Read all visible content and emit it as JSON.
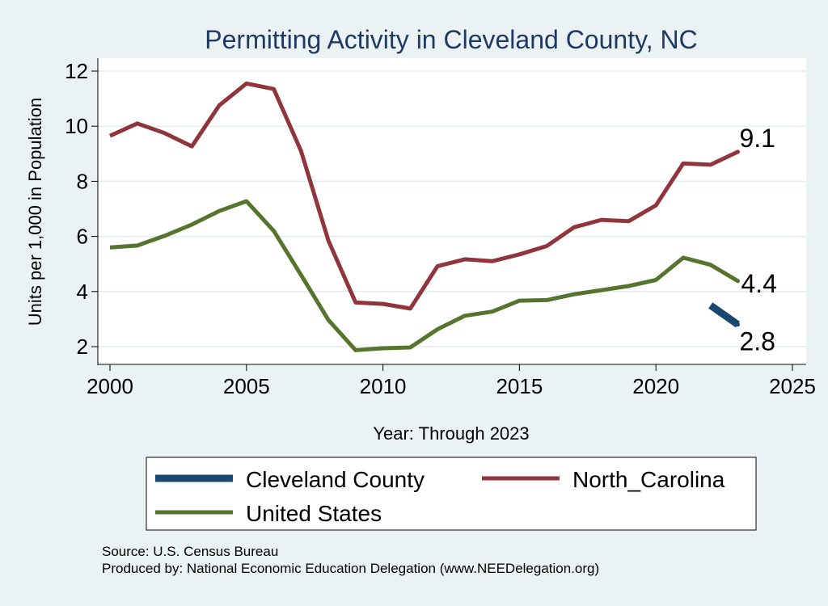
{
  "colors": {
    "background": "#EAF2F3",
    "plot_background": "#FFFFFF",
    "title": "#1F3864",
    "cleveland": "#1A476F",
    "north_carolina": "#90353B",
    "united_states": "#55752F"
  },
  "chart_data": {
    "type": "line",
    "title": "Permitting Activity in Cleveland County, NC",
    "xlabel": "Year: Through 2023",
    "ylabel": "Units per 1,000 in Population",
    "xlim": [
      2000,
      2025
    ],
    "ylim": [
      1.5,
      12.5
    ],
    "x_ticks": [
      "2000",
      "2005",
      "2010",
      "2015",
      "2020",
      "2025"
    ],
    "y_ticks": [
      "2",
      "4",
      "6",
      "8",
      "10",
      "12"
    ],
    "grid": true,
    "legend_position": "bottom",
    "series": [
      {
        "name": "Cleveland County",
        "color": "#1A476F",
        "x": [
          2022,
          2023
        ],
        "values": [
          3.5,
          2.8
        ],
        "end_label": "2.8"
      },
      {
        "name": "North_Carolina",
        "color": "#90353B",
        "x": [
          2000,
          2001,
          2002,
          2003,
          2004,
          2005,
          2006,
          2007,
          2008,
          2009,
          2010,
          2011,
          2012,
          2013,
          2014,
          2015,
          2016,
          2017,
          2018,
          2019,
          2020,
          2021,
          2022,
          2023
        ],
        "values": [
          9.65,
          10.1,
          9.75,
          9.27,
          10.75,
          11.55,
          11.35,
          9.1,
          5.85,
          3.6,
          3.55,
          3.38,
          4.92,
          5.17,
          5.1,
          5.35,
          5.65,
          6.33,
          6.6,
          6.55,
          7.13,
          8.65,
          8.6,
          9.07
        ],
        "end_label": "9.1"
      },
      {
        "name": "United States",
        "color": "#55752F",
        "x": [
          2000,
          2001,
          2002,
          2003,
          2004,
          2005,
          2006,
          2007,
          2008,
          2009,
          2010,
          2011,
          2012,
          2013,
          2014,
          2015,
          2016,
          2017,
          2018,
          2019,
          2020,
          2021,
          2022,
          2023
        ],
        "values": [
          5.6,
          5.67,
          6.02,
          6.43,
          6.92,
          7.28,
          6.2,
          4.6,
          2.97,
          1.87,
          1.94,
          1.97,
          2.63,
          3.12,
          3.27,
          3.67,
          3.69,
          3.9,
          4.05,
          4.2,
          4.42,
          5.23,
          4.97,
          4.38
        ],
        "end_label": "4.4"
      }
    ],
    "legend_entries": [
      "Cleveland County",
      "North_Carolina",
      "United States"
    ]
  },
  "footer": {
    "source": "Source: U.S. Census Bureau",
    "produced_by": "Produced by: National Economic Education Delegation (www.NEEDelegation.org)"
  }
}
